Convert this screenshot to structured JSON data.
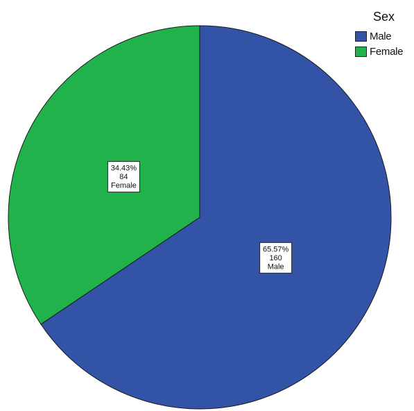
{
  "chart_data": {
    "type": "pie",
    "legend_title": "Sex",
    "legend_position": "top-right",
    "slices": [
      {
        "label": "Male",
        "count": 160,
        "percent": "65.57%",
        "color": "#3253a6"
      },
      {
        "label": "Female",
        "count": 84,
        "percent": "34.43%",
        "color": "#21b24b"
      }
    ]
  }
}
